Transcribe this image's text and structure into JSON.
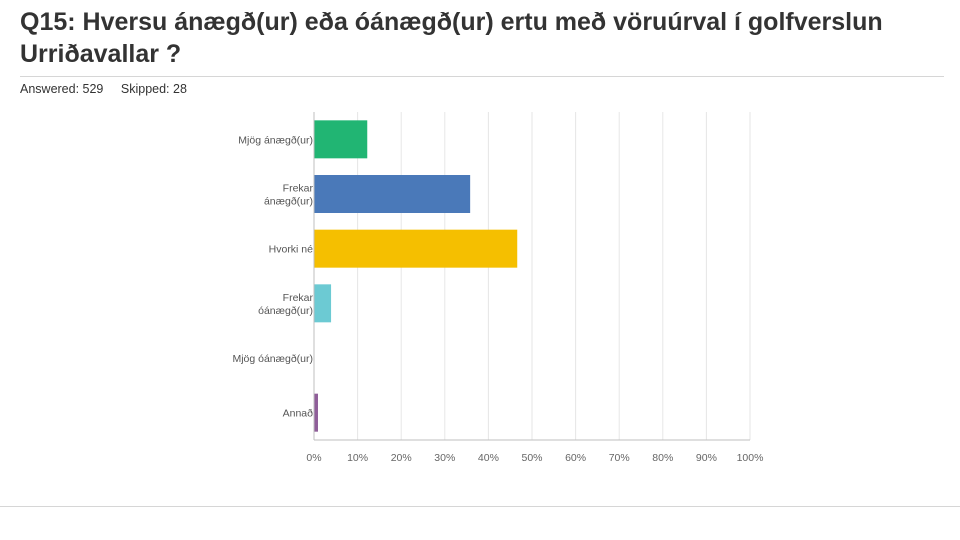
{
  "question": {
    "title": "Q15: Hversu ánægð(ur) eða óánægð(ur) ertu með vöruúrval í golfverslun Urriðavallar ?",
    "answered": "Answered: 529",
    "skipped": "Skipped: 28"
  },
  "chart_data": {
    "type": "bar",
    "orientation": "horizontal",
    "categories": [
      "Mjög ánægð(ur)",
      "Frekar ánægð(ur)",
      "Hvorki né",
      "Frekar óánægð(ur)",
      "Mjög óánægð(ur)",
      "Annað"
    ],
    "values": [
      12.1,
      35.7,
      46.5,
      3.8,
      0,
      0.8
    ],
    "value_unit": "%",
    "xlim": [
      0,
      100
    ],
    "xticks": [
      "0%",
      "10%",
      "20%",
      "30%",
      "40%",
      "50%",
      "60%",
      "70%",
      "80%",
      "90%",
      "100%"
    ],
    "grid": true,
    "colors": [
      "#21b573",
      "#4a79b9",
      "#f5bf00",
      "#6ccad3",
      "#e5658a",
      "#8f5e99"
    ]
  }
}
